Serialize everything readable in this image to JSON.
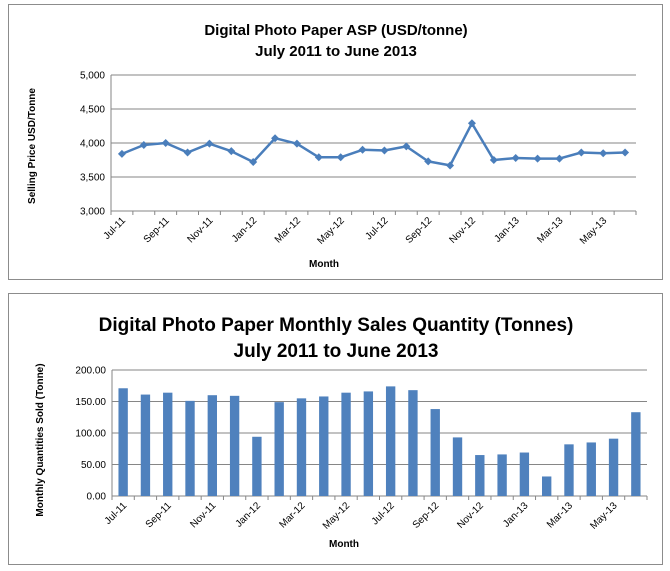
{
  "chart_data": [
    {
      "type": "line",
      "title": "Digital Photo Paper ASP (USD/tonne)",
      "subtitle": "July 2011 to June 2013",
      "xlabel": "Month",
      "ylabel": "Selling Price USD/Tonne",
      "ylim": [
        3000,
        5000
      ],
      "yticks": [
        "3,000",
        "3,500",
        "4,000",
        "4,500",
        "5,000"
      ],
      "xticks": [
        "Jul-11",
        "Sep-11",
        "Nov-11",
        "Jan-12",
        "Mar-12",
        "May-12",
        "Jul-12",
        "Sep-12",
        "Nov-12",
        "Jan-13",
        "Mar-13",
        "May-13"
      ],
      "grid": true,
      "legend": "none",
      "color": "#4a7ebb",
      "values": [
        3840,
        3970,
        4000,
        3860,
        3990,
        3880,
        3720,
        4070,
        3990,
        3790,
        3790,
        3900,
        3890,
        3950,
        3730,
        3670,
        4290,
        3750,
        3780,
        3770,
        3770,
        3860,
        3850,
        3860
      ]
    },
    {
      "type": "bar",
      "title": "Digital Photo Paper Monthly Sales Quantity (Tonnes)",
      "subtitle": "July 2011 to June 2013",
      "xlabel": "Month",
      "ylabel": "Monthly Quantities  Sold (Tonne)",
      "ylim": [
        0,
        200
      ],
      "yticks": [
        "0.00",
        "50.00",
        "100.00",
        "150.00",
        "200.00"
      ],
      "xticks": [
        "Jul-11",
        "Sep-11",
        "Nov-11",
        "Jan-12",
        "Mar-12",
        "May-12",
        "Jul-12",
        "Sep-12",
        "Nov-12",
        "Jan-13",
        "Mar-13",
        "May-13"
      ],
      "grid": true,
      "legend": "none",
      "color": "#4f81bd",
      "values": [
        171,
        161,
        164,
        151,
        160,
        159,
        94,
        149,
        155,
        158,
        164,
        166,
        174,
        168,
        138,
        93,
        65,
        66,
        69,
        31,
        82,
        85,
        91,
        133
      ]
    }
  ]
}
